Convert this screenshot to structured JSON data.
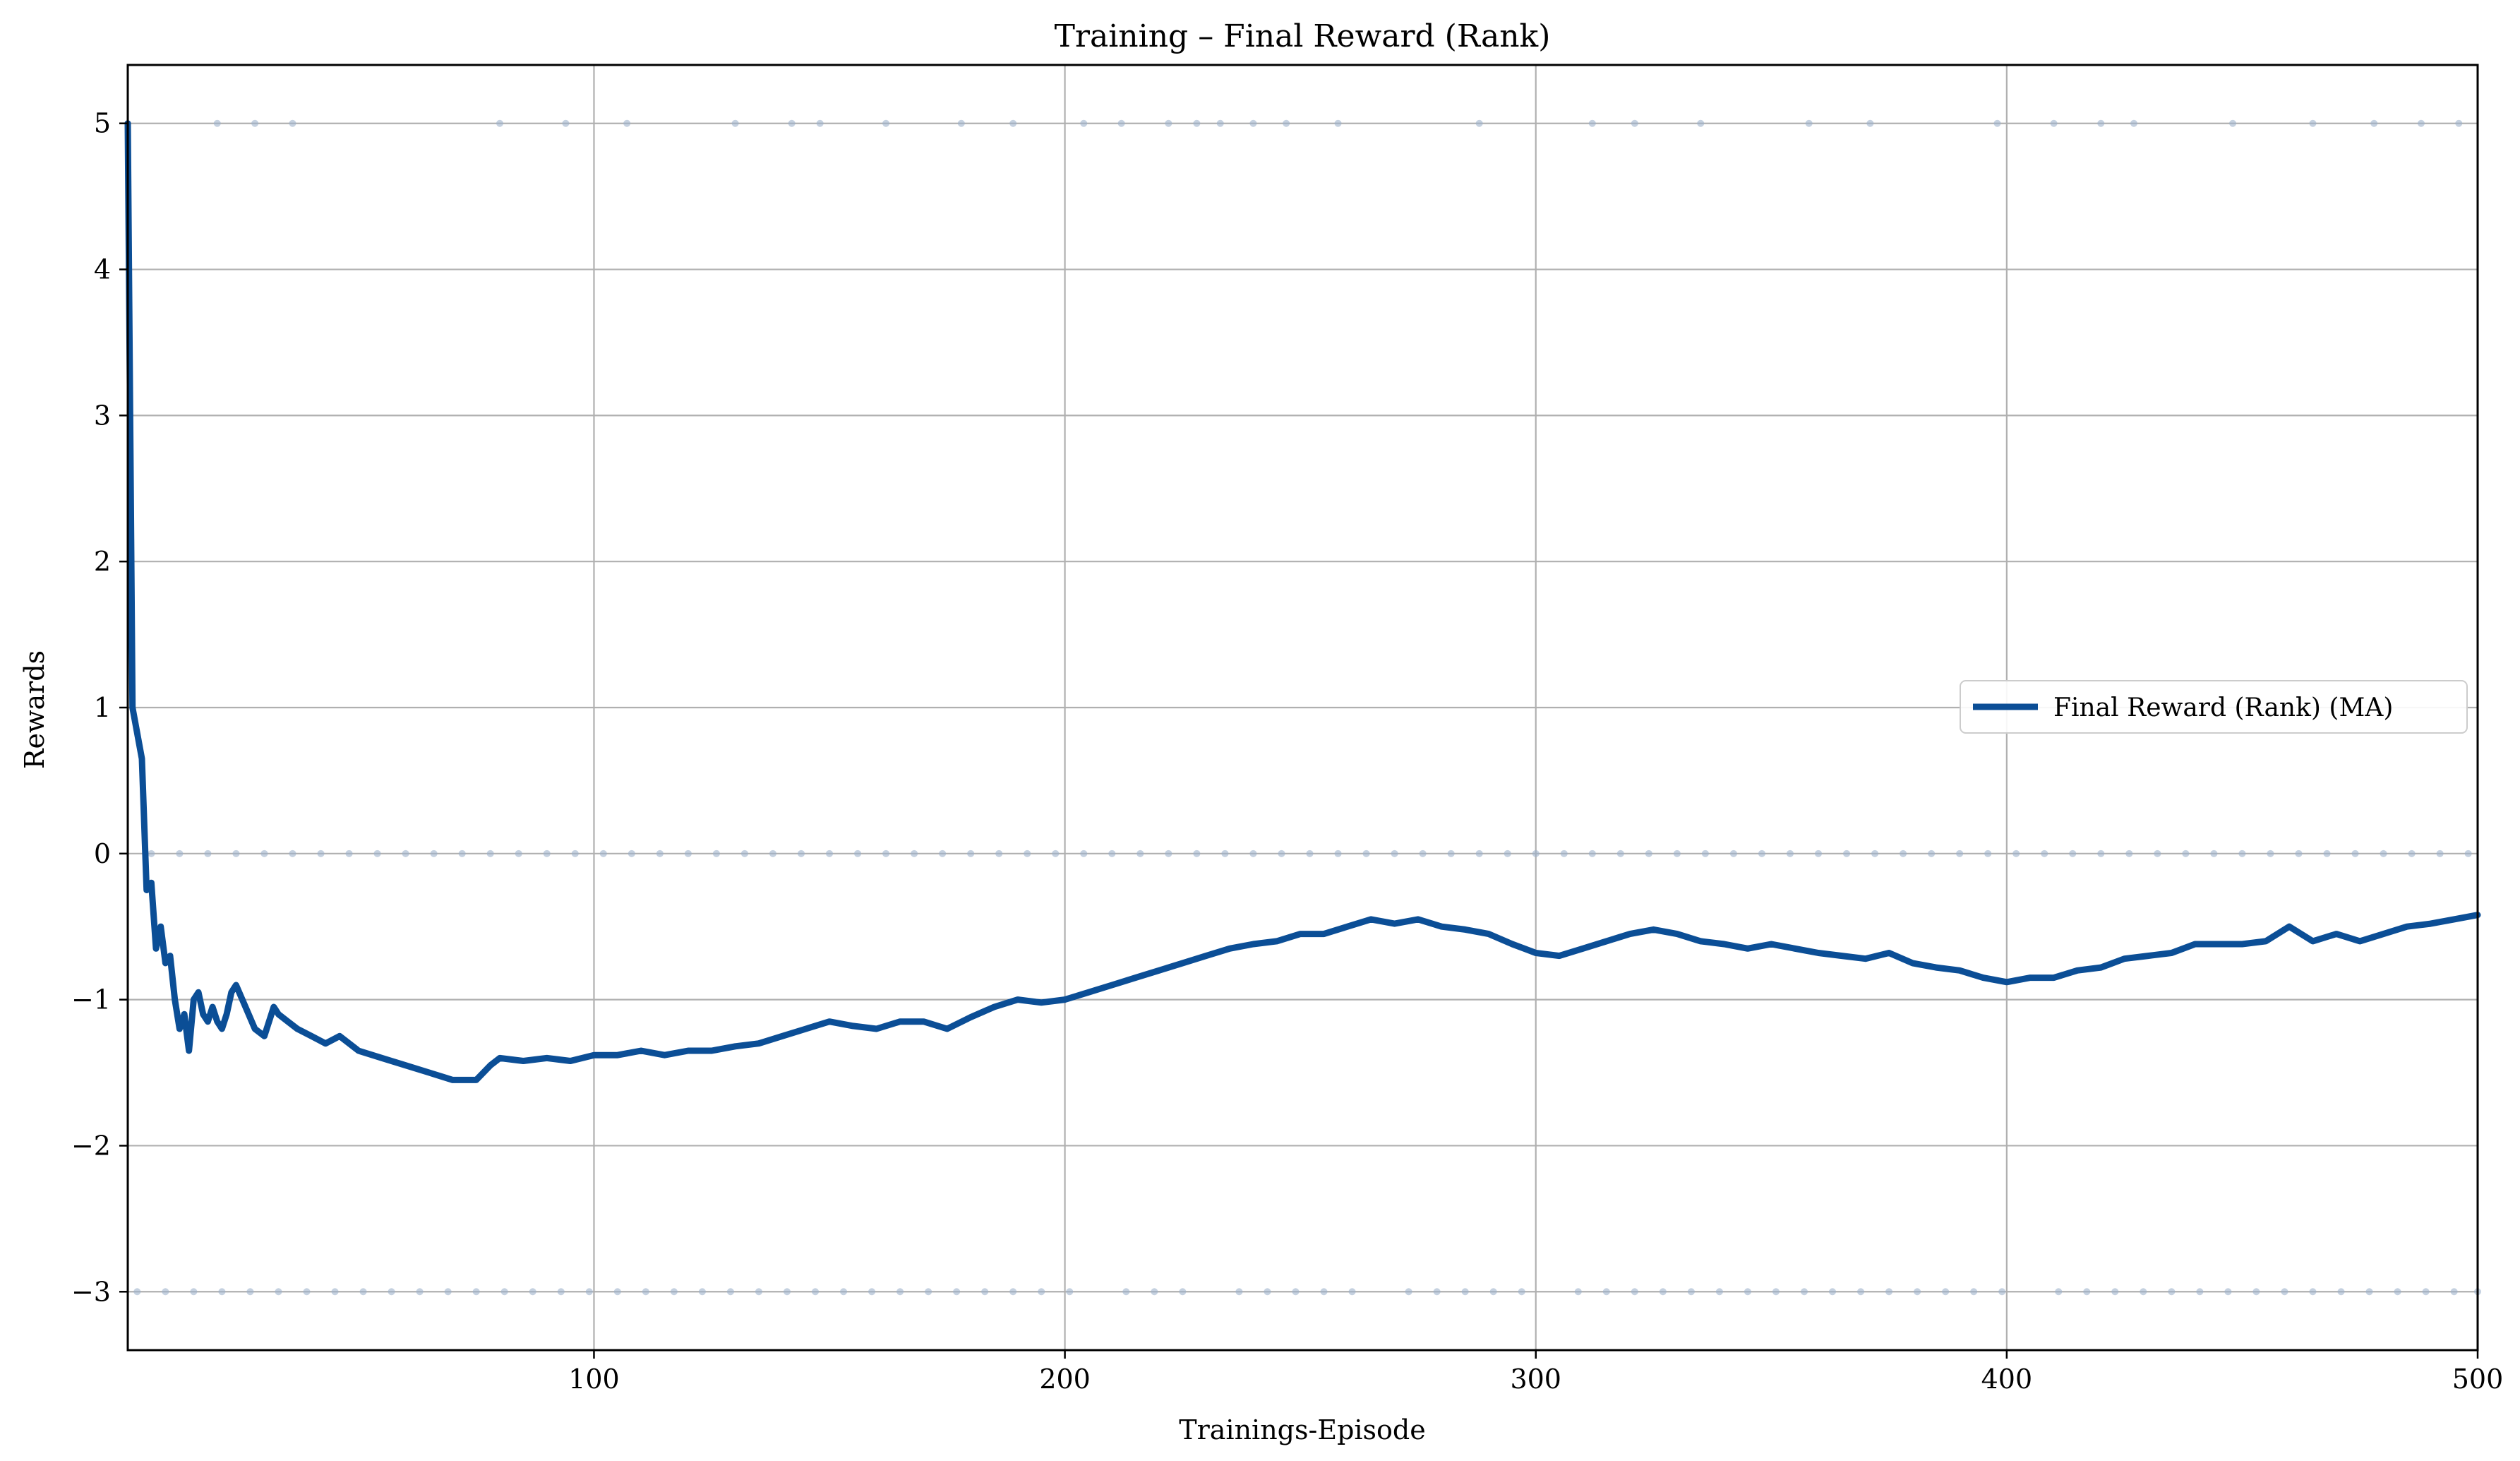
{
  "chart_data": {
    "type": "line",
    "title": "Training – Final Reward (Rank)",
    "xlabel": "Trainings-Episode",
    "ylabel": "Rewards",
    "xlim": [
      1,
      500
    ],
    "ylim": [
      -3.4,
      5.4
    ],
    "x_ticks": [
      100,
      200,
      300,
      400,
      500
    ],
    "y_ticks": [
      5,
      4,
      3,
      2,
      1,
      0,
      -1,
      -2,
      -3
    ],
    "tick_labels_x": [
      "100",
      "200",
      "300",
      "400",
      "500"
    ],
    "tick_labels_y": [
      "5",
      "4",
      "3",
      "2",
      "1",
      "0",
      "−1",
      "−2",
      "−3"
    ],
    "grid": true,
    "legend_position": "center-right",
    "series": [
      {
        "name": "Final Reward (Rank) (MA)",
        "color": "#0b4e96",
        "x": [
          1,
          2,
          4,
          5,
          6,
          7,
          8,
          9,
          10,
          11,
          12,
          13,
          14,
          15,
          16,
          17,
          18,
          19,
          20,
          21,
          22,
          23,
          24,
          26,
          28,
          30,
          32,
          33,
          35,
          37,
          40,
          43,
          46,
          50,
          55,
          60,
          65,
          70,
          75,
          78,
          80,
          85,
          90,
          95,
          100,
          105,
          110,
          115,
          120,
          125,
          130,
          135,
          140,
          145,
          150,
          155,
          160,
          165,
          170,
          175,
          180,
          185,
          190,
          195,
          200,
          205,
          210,
          215,
          220,
          225,
          230,
          235,
          240,
          245,
          250,
          255,
          260,
          265,
          270,
          275,
          280,
          285,
          290,
          295,
          300,
          305,
          310,
          315,
          320,
          325,
          330,
          335,
          340,
          345,
          350,
          355,
          360,
          365,
          370,
          375,
          380,
          385,
          390,
          395,
          400,
          405,
          410,
          415,
          420,
          425,
          430,
          435,
          440,
          445,
          450,
          455,
          460,
          465,
          470,
          475,
          480,
          485,
          490,
          495,
          500
        ],
        "values": [
          5.0,
          1.0,
          0.65,
          -0.25,
          -0.2,
          -0.65,
          -0.5,
          -0.75,
          -0.7,
          -1.0,
          -1.2,
          -1.1,
          -1.35,
          -1.0,
          -0.95,
          -1.1,
          -1.15,
          -1.05,
          -1.15,
          -1.2,
          -1.1,
          -0.95,
          -0.9,
          -1.05,
          -1.2,
          -1.25,
          -1.05,
          -1.1,
          -1.15,
          -1.2,
          -1.25,
          -1.3,
          -1.25,
          -1.35,
          -1.4,
          -1.45,
          -1.5,
          -1.55,
          -1.55,
          -1.45,
          -1.4,
          -1.42,
          -1.4,
          -1.42,
          -1.38,
          -1.38,
          -1.35,
          -1.38,
          -1.35,
          -1.35,
          -1.32,
          -1.3,
          -1.25,
          -1.2,
          -1.15,
          -1.18,
          -1.2,
          -1.15,
          -1.15,
          -1.2,
          -1.12,
          -1.05,
          -1.0,
          -1.02,
          -1.0,
          -0.95,
          -0.9,
          -0.85,
          -0.8,
          -0.75,
          -0.7,
          -0.65,
          -0.62,
          -0.6,
          -0.55,
          -0.55,
          -0.5,
          -0.45,
          -0.48,
          -0.45,
          -0.5,
          -0.52,
          -0.55,
          -0.62,
          -0.68,
          -0.7,
          -0.65,
          -0.6,
          -0.55,
          -0.52,
          -0.55,
          -0.6,
          -0.62,
          -0.65,
          -0.62,
          -0.65,
          -0.68,
          -0.7,
          -0.72,
          -0.68,
          -0.75,
          -0.78,
          -0.8,
          -0.85,
          -0.88,
          -0.85,
          -0.85,
          -0.8,
          -0.78,
          -0.72,
          -0.7,
          -0.68,
          -0.62,
          -0.62,
          -0.62,
          -0.6,
          -0.5,
          -0.6,
          -0.55,
          -0.6,
          -0.55,
          -0.5,
          -0.48,
          -0.45,
          -0.42
        ]
      },
      {
        "name": "",
        "type": "scatter",
        "color": "#9eb3cc",
        "x": [
          20,
          28,
          36,
          80,
          94,
          107,
          130,
          142,
          148,
          162,
          178,
          189,
          204,
          212,
          222,
          228,
          233,
          240,
          247,
          258,
          288,
          312,
          321,
          335,
          358,
          371,
          398,
          410,
          420,
          427,
          448,
          465,
          478,
          488,
          496
        ],
        "values": [
          5,
          5,
          5,
          5,
          5,
          5,
          5,
          5,
          5,
          5,
          5,
          5,
          5,
          5,
          5,
          5,
          5,
          5,
          5,
          5,
          5,
          5,
          5,
          5,
          5,
          5,
          5,
          5,
          5,
          5,
          5,
          5,
          5,
          5,
          5
        ]
      },
      {
        "name": "",
        "type": "scatter",
        "color": "#9eb3cc",
        "x": [
          6,
          12,
          18,
          24,
          30,
          36,
          42,
          48,
          54,
          60,
          66,
          72,
          78,
          84,
          90,
          96,
          102,
          108,
          114,
          120,
          126,
          132,
          138,
          144,
          150,
          156,
          162,
          168,
          174,
          180,
          186,
          192,
          198,
          204,
          210,
          216,
          222,
          228,
          234,
          240,
          246,
          252,
          258,
          264,
          270,
          276,
          282,
          288,
          294,
          300,
          306,
          312,
          318,
          324,
          330,
          336,
          342,
          348,
          354,
          360,
          366,
          372,
          378,
          384,
          390,
          396,
          402,
          408,
          414,
          420,
          426,
          432,
          438,
          444,
          450,
          456,
          462,
          468,
          474,
          480,
          486,
          492,
          498
        ],
        "values": [
          0,
          0,
          0,
          0,
          0,
          0,
          0,
          0,
          0,
          0,
          0,
          0,
          0,
          0,
          0,
          0,
          0,
          0,
          0,
          0,
          0,
          0,
          0,
          0,
          0,
          0,
          0,
          0,
          0,
          0,
          0,
          0,
          0,
          0,
          0,
          0,
          0,
          0,
          0,
          0,
          0,
          0,
          0,
          0,
          0,
          0,
          0,
          0,
          0,
          0,
          0,
          0,
          0,
          0,
          0,
          0,
          0,
          0,
          0,
          0,
          0,
          0,
          0,
          0,
          0,
          0,
          0,
          0,
          0,
          0,
          0,
          0,
          0,
          0,
          0,
          0,
          0,
          0,
          0,
          0,
          0,
          0,
          0
        ]
      },
      {
        "name": "",
        "type": "scatter",
        "color": "#9eb3cc",
        "x": [
          3,
          9,
          15,
          21,
          27,
          33,
          39,
          45,
          51,
          57,
          63,
          69,
          75,
          81,
          87,
          93,
          99,
          105,
          111,
          117,
          123,
          129,
          135,
          141,
          147,
          153,
          159,
          165,
          171,
          177,
          183,
          189,
          195,
          201,
          213,
          219,
          225,
          237,
          243,
          249,
          255,
          261,
          273,
          279,
          285,
          291,
          297,
          309,
          315,
          321,
          327,
          333,
          339,
          345,
          351,
          357,
          363,
          369,
          375,
          381,
          387,
          393,
          399,
          411,
          417,
          423,
          429,
          435,
          441,
          447,
          453,
          459,
          465,
          471,
          477,
          483,
          489,
          495,
          500
        ],
        "values": [
          -3,
          -3,
          -3,
          -3,
          -3,
          -3,
          -3,
          -3,
          -3,
          -3,
          -3,
          -3,
          -3,
          -3,
          -3,
          -3,
          -3,
          -3,
          -3,
          -3,
          -3,
          -3,
          -3,
          -3,
          -3,
          -3,
          -3,
          -3,
          -3,
          -3,
          -3,
          -3,
          -3,
          -3,
          -3,
          -3,
          -3,
          -3,
          -3,
          -3,
          -3,
          -3,
          -3,
          -3,
          -3,
          -3,
          -3,
          -3,
          -3,
          -3,
          -3,
          -3,
          -3,
          -3,
          -3,
          -3,
          -3,
          -3,
          -3,
          -3,
          -3,
          -3,
          -3,
          -3,
          -3,
          -3,
          -3,
          -3,
          -3,
          -3,
          -3,
          -3,
          -3,
          -3,
          -3,
          -3,
          -3,
          -3,
          -3
        ]
      }
    ]
  }
}
